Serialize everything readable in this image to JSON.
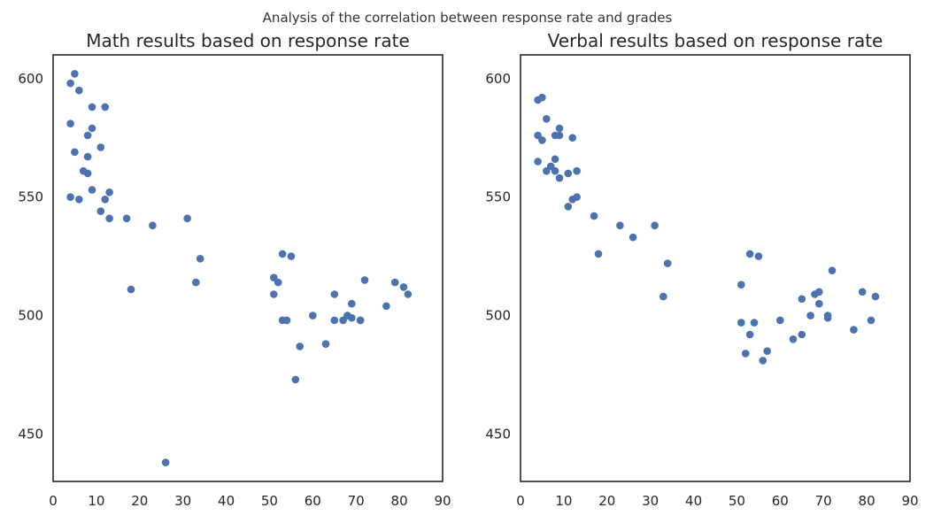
{
  "suptitle": "Analysis of the correlation between response rate and grades",
  "colors": {
    "marker": "#4c72b0",
    "axes": "#262626",
    "background": "#ffffff"
  },
  "chart_data": [
    {
      "type": "scatter",
      "title": "Math results based on response rate",
      "xlabel": "",
      "ylabel": "",
      "xlim": [
        0,
        90
      ],
      "ylim": [
        430,
        610
      ],
      "xticks": [
        0,
        10,
        20,
        30,
        40,
        50,
        60,
        70,
        80,
        90
      ],
      "yticks": [
        450,
        500,
        550,
        600
      ],
      "grid": false,
      "legend": false,
      "series": [
        {
          "marker_color": "#4c72b0",
          "x": [
            4,
            5,
            6,
            4,
            9,
            12,
            9,
            8,
            11,
            5,
            8,
            7,
            8,
            9,
            13,
            4,
            6,
            12,
            11,
            13,
            17,
            23,
            31,
            34,
            33,
            18,
            26,
            53,
            55,
            51,
            52,
            51,
            53,
            54,
            60,
            57,
            56,
            63,
            65,
            65,
            67,
            68,
            69,
            69,
            71,
            71,
            72,
            77,
            79,
            81,
            82
          ],
          "y": [
            598,
            602,
            595,
            581,
            588,
            588,
            579,
            576,
            571,
            569,
            567,
            561,
            560,
            553,
            552,
            550,
            549,
            549,
            544,
            541,
            541,
            538,
            541,
            524,
            514,
            511,
            438,
            526,
            525,
            516,
            514,
            509,
            498,
            498,
            500,
            487,
            473,
            488,
            509,
            498,
            498,
            500,
            505,
            499,
            498,
            498,
            515,
            504,
            514,
            512,
            509
          ]
        }
      ]
    },
    {
      "type": "scatter",
      "title": "Verbal results based on response rate",
      "xlabel": "",
      "ylabel": "",
      "xlim": [
        0,
        90
      ],
      "ylim": [
        430,
        610
      ],
      "xticks": [
        0,
        10,
        20,
        30,
        40,
        50,
        60,
        70,
        80,
        90
      ],
      "yticks": [
        450,
        500,
        550,
        600
      ],
      "grid": false,
      "legend": false,
      "series": [
        {
          "marker_color": "#4c72b0",
          "x": [
            4,
            5,
            6,
            4,
            5,
            8,
            9,
            9,
            12,
            8,
            4,
            7,
            6,
            8,
            13,
            11,
            9,
            13,
            12,
            11,
            17,
            23,
            26,
            31,
            34,
            33,
            18,
            53,
            55,
            51,
            51,
            52,
            54,
            53,
            56,
            57,
            60,
            63,
            65,
            65,
            67,
            68,
            69,
            69,
            71,
            71,
            72,
            77,
            79,
            81,
            82
          ],
          "y": [
            591,
            592,
            583,
            576,
            574,
            576,
            579,
            576,
            575,
            566,
            565,
            563,
            561,
            561,
            561,
            560,
            558,
            550,
            549,
            546,
            542,
            538,
            533,
            538,
            522,
            508,
            526,
            526,
            525,
            513,
            497,
            484,
            497,
            492,
            481,
            485,
            498,
            490,
            507,
            492,
            500,
            509,
            505,
            510,
            500,
            499,
            519,
            494,
            510,
            498,
            508
          ]
        }
      ]
    }
  ]
}
